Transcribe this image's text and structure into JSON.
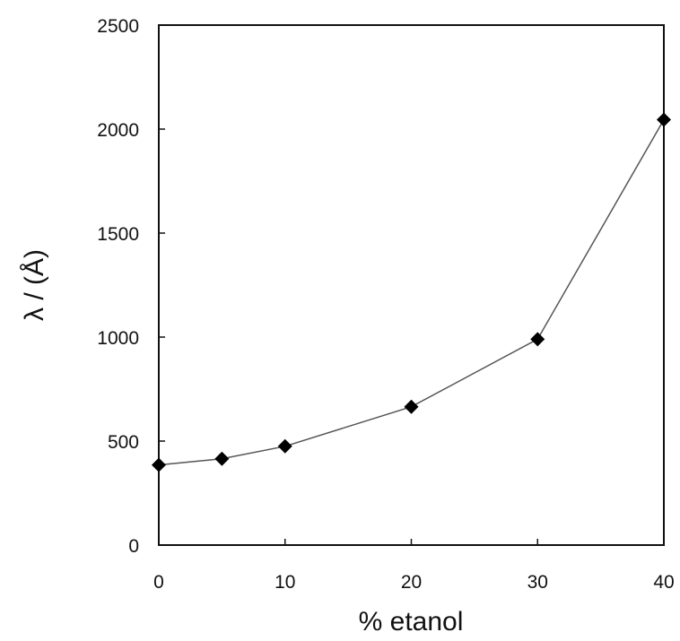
{
  "chart_data": {
    "type": "line",
    "xlabel": "% etanol",
    "ylabel": "λ / (Å)",
    "xlim": [
      0,
      40
    ],
    "ylim": [
      0,
      2500
    ],
    "xticks": [
      "0",
      "10",
      "20",
      "30",
      "40"
    ],
    "yticks": [
      "0",
      "500",
      "1000",
      "1500",
      "2000",
      "2500"
    ],
    "grid": false,
    "legend": "none",
    "series": [
      {
        "x": [
          0,
          5,
          10,
          20,
          30,
          40
        ],
        "y": [
          385,
          415,
          475,
          665,
          990,
          2045
        ],
        "color": "#000000",
        "line_color": "#555555",
        "marker": "diamond"
      }
    ]
  }
}
